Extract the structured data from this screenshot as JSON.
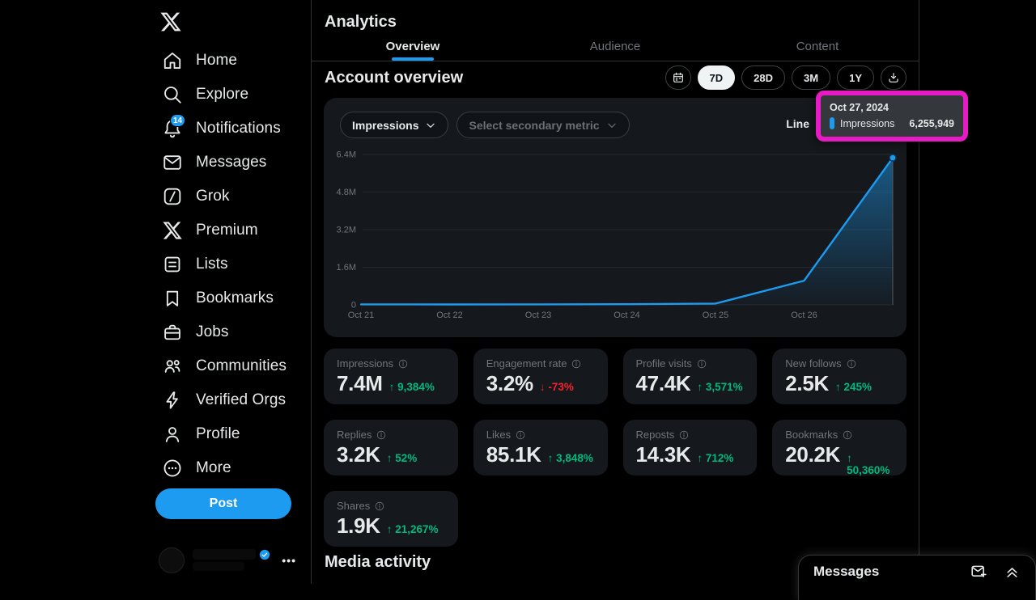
{
  "sidebar": {
    "items": [
      {
        "label": "Home",
        "icon": "home-icon"
      },
      {
        "label": "Explore",
        "icon": "search-icon"
      },
      {
        "label": "Notifications",
        "icon": "bell-icon",
        "badge": "14"
      },
      {
        "label": "Messages",
        "icon": "envelope-icon"
      },
      {
        "label": "Grok",
        "icon": "grok-icon"
      },
      {
        "label": "Premium",
        "icon": "x-premium-icon"
      },
      {
        "label": "Lists",
        "icon": "list-icon"
      },
      {
        "label": "Bookmarks",
        "icon": "bookmark-icon"
      },
      {
        "label": "Jobs",
        "icon": "briefcase-icon"
      },
      {
        "label": "Communities",
        "icon": "communities-icon"
      },
      {
        "label": "Verified Orgs",
        "icon": "verified-orgs-icon"
      },
      {
        "label": "Profile",
        "icon": "profile-icon"
      },
      {
        "label": "More",
        "icon": "more-icon"
      }
    ],
    "post_button_label": "Post"
  },
  "header": {
    "title": "Analytics"
  },
  "tabs": [
    {
      "label": "Overview",
      "active": true
    },
    {
      "label": "Audience",
      "active": false
    },
    {
      "label": "Content",
      "active": false
    }
  ],
  "account_overview": {
    "title": "Account overview",
    "range_buttons": [
      "7D",
      "28D",
      "3M",
      "1Y"
    ],
    "selected_range": "7D"
  },
  "chart_card": {
    "primary_metric_label": "Impressions",
    "secondary_metric_placeholder": "Select secondary metric",
    "chart_type_label": "Line",
    "tooltip": {
      "date": "Oct 27, 2024",
      "series": "Impressions",
      "value": "6,255,949"
    }
  },
  "chart_data": {
    "type": "line",
    "title": "Account overview — Impressions (7D)",
    "x": [
      "Oct 21",
      "Oct 22",
      "Oct 23",
      "Oct 24",
      "Oct 25",
      "Oct 26",
      "Oct 27"
    ],
    "series": [
      {
        "name": "Impressions",
        "values": [
          20000,
          18000,
          22000,
          28000,
          55000,
          1030000,
          6255949
        ]
      }
    ],
    "y_ticks": [
      "0",
      "1.6M",
      "3.2M",
      "4.8M",
      "6.4M"
    ],
    "ylim": [
      0,
      6400000
    ],
    "grid": true,
    "legend_position": "none",
    "hover_point": {
      "x": "Oct 27, 2024",
      "series": "Impressions",
      "value": 6255949
    }
  },
  "metrics": [
    {
      "label": "Impressions",
      "value": "7.4M",
      "delta": "9,384%",
      "direction": "up"
    },
    {
      "label": "Engagement rate",
      "value": "3.2%",
      "delta": "-73%",
      "direction": "down"
    },
    {
      "label": "Profile visits",
      "value": "47.4K",
      "delta": "3,571%",
      "direction": "up"
    },
    {
      "label": "New follows",
      "value": "2.5K",
      "delta": "245%",
      "direction": "up"
    },
    {
      "label": "Replies",
      "value": "3.2K",
      "delta": "52%",
      "direction": "up"
    },
    {
      "label": "Likes",
      "value": "85.1K",
      "delta": "3,848%",
      "direction": "up"
    },
    {
      "label": "Reposts",
      "value": "14.3K",
      "delta": "712%",
      "direction": "up"
    },
    {
      "label": "Bookmarks",
      "value": "20.2K",
      "delta": "50,360%",
      "direction": "up"
    },
    {
      "label": "Shares",
      "value": "1.9K",
      "delta": "21,267%",
      "direction": "up"
    }
  ],
  "media_activity": {
    "title": "Media activity"
  },
  "messages_drawer": {
    "title": "Messages"
  },
  "colors": {
    "accent_blue": "#1d9bf0",
    "positive_green": "#00ba7c",
    "negative_red": "#f4212e",
    "annotation_magenta": "#e71bc4",
    "card_background": "#15181c",
    "text_secondary": "#71767b"
  }
}
